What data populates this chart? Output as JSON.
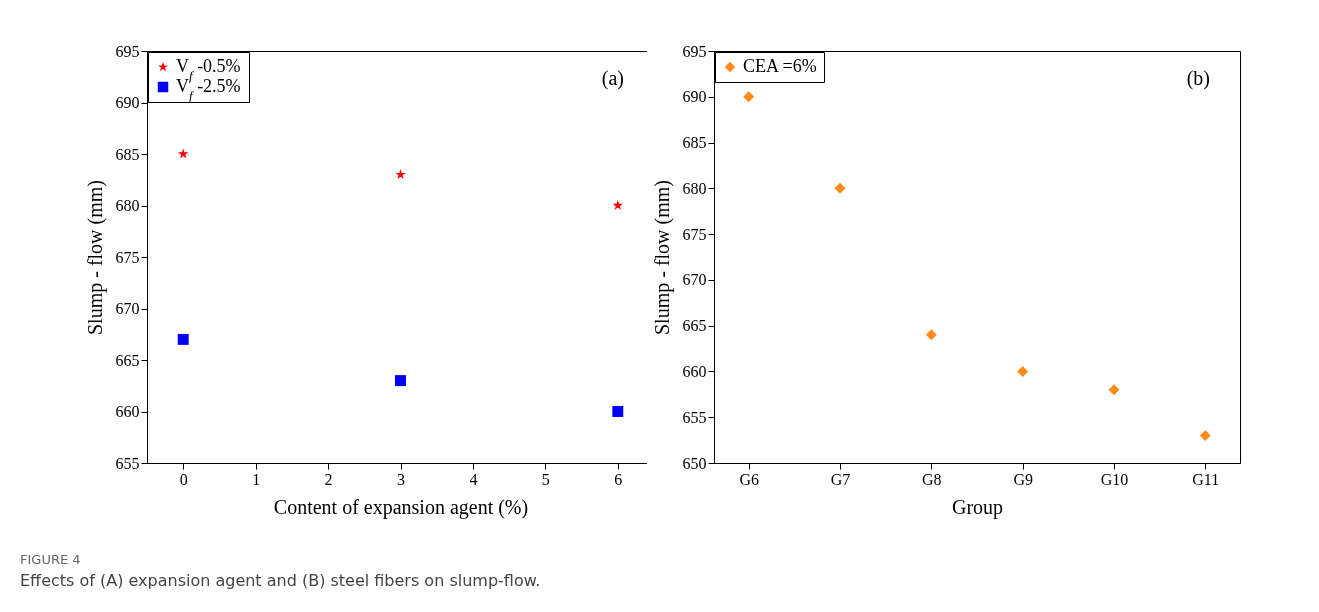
{
  "chart_data": [
    {
      "type": "scatter",
      "xlabel": "Content of expansion agent (%)",
      "ylabel": "Slump - flow (mm)",
      "x": [
        0,
        3,
        6
      ],
      "xlim": [
        -0.5,
        6.5
      ],
      "xticks": [
        0,
        1,
        2,
        3,
        4,
        5,
        6
      ],
      "ylim": [
        655,
        695
      ],
      "yticks": [
        655,
        660,
        665,
        670,
        675,
        680,
        685,
        690,
        695
      ],
      "legend": "top left",
      "annotations": [
        "(a)",
        "FIGURE 4",
        "Effects of (A) expansion agent and (B) steel fibers on slump-flow."
      ],
      "series": [
        {
          "name": "V$_{f}$ -0.5%",
          "color": "#ff0000",
          "marker": "star",
          "values": [
            685,
            683,
            680
          ]
        },
        {
          "name": "V$_{f}$ -2.5%",
          "color": "#0000ff",
          "marker": "square",
          "values": [
            667,
            663,
            660
          ]
        }
      ]
    },
    {
      "type": "scatter",
      "xlabel": "Group",
      "ylabel": "Slump - flow (mm)",
      "categories": [
        "G6",
        "G7",
        "G8",
        "G9",
        "G10",
        "G11"
      ],
      "ylim": [
        650,
        695
      ],
      "yticks": [
        650,
        655,
        660,
        665,
        670,
        675,
        680,
        685,
        690,
        695
      ],
      "legend": "top left",
      "annotations": [
        "(b)"
      ],
      "series": [
        {
          "name": "CEA =6%",
          "color": "#ff8c1a",
          "marker": "diamond",
          "values": [
            690,
            680,
            664,
            660,
            658,
            653
          ]
        }
      ]
    }
  ]
}
